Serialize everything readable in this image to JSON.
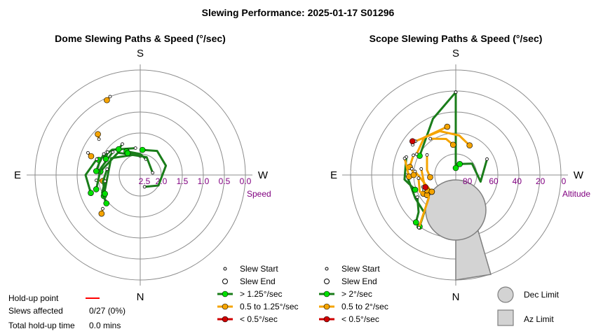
{
  "title": "Slewing Performance: 2025-01-17 S01296",
  "colors": {
    "fast": "#00e000",
    "fast_line": "#1a7d1a",
    "medium": "#f5a400",
    "slow": "#d00000",
    "ring": "#8c8c8c",
    "label": "#800080",
    "limit_fill": "#d3d3d3",
    "limit_stroke": "#7f7f7f",
    "holdup": "#ff0000"
  },
  "stats": {
    "holdup_label": "Hold-up point",
    "slews_affected_label": "Slews affected",
    "slews_affected_value": "0/27 (0%)",
    "total_holdup_label": "Total hold-up time",
    "total_holdup_value": "0.0 mins"
  },
  "legend_limits": {
    "dec_limit": "Dec Limit",
    "az_limit": "Az Limit"
  },
  "chart_data": [
    {
      "type": "scatter",
      "title": "Dome Slewing Paths & Speed (°/sec)",
      "projection": "polar",
      "directions": {
        "top": "S",
        "bottom": "N",
        "left": "E",
        "right": "W"
      },
      "radial_label": "Speed",
      "radial_ticks": [
        "2.5",
        "2.0",
        "1.5",
        "1.0",
        "0.5",
        "0.0"
      ],
      "rlim": [
        0,
        2.5
      ],
      "legend": [
        "Slew Start",
        "Slew End",
        "> 1.25°/sec",
        "0.5 to 1.25°/sec",
        "< 0.5°/sec"
      ],
      "speed_classes": [
        "> 1.25°/sec",
        "0.5 to 1.25°/sec",
        "< 0.5°/sec"
      ],
      "slews": [
        {
          "speed_class": 1,
          "az": [
            159,
            156
          ],
          "r": [
            0.5,
            0.55
          ]
        },
        {
          "speed_class": 1,
          "az": [
            131,
            134
          ],
          "r": [
            1.2,
            1.1
          ]
        },
        {
          "speed_class": 1,
          "az": [
            113,
            111
          ],
          "r": [
            1.15,
            1.25
          ]
        },
        {
          "speed_class": 1,
          "az": [
            83,
            81
          ],
          "r": [
            1.45,
            1.6
          ]
        },
        {
          "speed_class": 1,
          "az": [
            48,
            45
          ],
          "r": [
            1.3,
            1.2
          ]
        },
        {
          "speed_class": 0,
          "az": [
            180,
            135,
            95
          ],
          "r": [
            2.05,
            1.75,
            1.55
          ]
        },
        {
          "speed_class": 0,
          "az": [
            170,
            132,
            110
          ],
          "r": [
            1.85,
            1.6,
            1.45
          ]
        },
        {
          "speed_class": 0,
          "az": [
            120,
            105,
            95
          ],
          "r": [
            1.5,
            1.48,
            1.45
          ]
        },
        {
          "speed_class": 0,
          "az": [
            110,
            90,
            70
          ],
          "r": [
            1.4,
            1.2,
            1.25
          ]
        },
        {
          "speed_class": 0,
          "az": [
            130,
            100,
            72
          ],
          "r": [
            1.65,
            1.55,
            1.4
          ]
        },
        {
          "speed_class": 0,
          "az": [
            170,
            120,
            60
          ],
          "r": [
            2.0,
            1.7,
            1.5
          ]
        },
        {
          "speed_class": 0,
          "az": [
            200,
            180,
            150
          ],
          "r": [
            2.1,
            2.0,
            1.85
          ]
        },
        {
          "speed_class": 0,
          "az": [
            260,
            200,
            150
          ],
          "r": [
            2.2,
            2.05,
            1.9
          ]
        },
        {
          "speed_class": 0,
          "az": [
            80,
            65,
            50
          ],
          "r": [
            1.65,
            1.5,
            1.45
          ]
        },
        {
          "speed_class": 0,
          "az": [
            100,
            80,
            62
          ],
          "r": [
            1.7,
            1.6,
            1.55
          ]
        },
        {
          "speed_class": 0,
          "az": [
            340,
            300,
            250,
            215,
            185
          ],
          "r": [
            2.2,
            2.0,
            1.85,
            1.8,
            1.9
          ]
        },
        {
          "speed_class": 0,
          "az": [
            125,
            115
          ],
          "r": [
            1.55,
            1.6
          ]
        },
        {
          "speed_class": 0,
          "az": [
            150,
            140
          ],
          "r": [
            1.65,
            1.7
          ]
        }
      ]
    },
    {
      "type": "scatter",
      "title": "Scope Slewing Paths & Speed (°/sec)",
      "projection": "polar",
      "directions": {
        "top": "S",
        "bottom": "N",
        "left": "E",
        "right": "W"
      },
      "radial_label": "Altitude",
      "radial_ticks": [
        "80",
        "60",
        "40",
        "20",
        "0"
      ],
      "rlim": [
        90,
        0
      ],
      "legend": [
        "Slew Start",
        "Slew End",
        "> 2°/sec",
        "0.5 to 2°/sec",
        "< 0.5°/sec"
      ],
      "speed_classes": [
        "> 2°/sec",
        "0.5 to 2°/sec",
        "< 0.5°/sec"
      ],
      "slews": [
        {
          "speed_class": 0,
          "az": [
            180,
            180
          ],
          "alt": [
            19,
            84
          ]
        },
        {
          "speed_class": 0,
          "az": [
            180,
            158,
            118
          ],
          "alt": [
            19,
            38,
            55
          ]
        },
        {
          "speed_class": 0,
          "az": [
            243,
            285,
            235,
            200
          ],
          "alt": [
            60,
            68,
            73,
            80
          ]
        },
        {
          "speed_class": 0,
          "az": [
            90,
            60,
            40,
            35
          ],
          "alt": [
            48,
            50,
            48,
            36
          ]
        },
        {
          "speed_class": 0,
          "az": [
            60,
            45,
            40
          ],
          "alt": [
            52,
            45,
            37
          ]
        },
        {
          "speed_class": 0,
          "az": [
            110,
            85,
            70
          ],
          "alt": [
            45,
            46,
            53
          ]
        },
        {
          "speed_class": 1,
          "az": [
            145,
            165,
            175
          ],
          "alt": [
            52,
            58,
            64
          ]
        },
        {
          "speed_class": 1,
          "az": [
            130,
            160,
            185,
            205
          ],
          "alt": [
            45,
            50,
            56,
            62
          ]
        },
        {
          "speed_class": 1,
          "az": [
            118,
            140,
            170
          ],
          "alt": [
            52,
            48,
            48
          ]
        },
        {
          "speed_class": 1,
          "az": [
            125,
            100,
            85
          ],
          "alt": [
            60,
            65,
            68
          ]
        },
        {
          "speed_class": 1,
          "az": [
            100,
            75,
            60
          ],
          "alt": [
            60,
            62,
            58
          ]
        },
        {
          "speed_class": 1,
          "az": [
            95,
            72,
            55
          ],
          "alt": [
            55,
            63,
            65
          ]
        },
        {
          "speed_class": 1,
          "az": [
            85,
            65,
            55
          ],
          "alt": [
            58,
            56,
            60
          ]
        },
        {
          "speed_class": 1,
          "az": [
            35,
            50,
            62
          ],
          "alt": [
            35,
            60,
            62
          ]
        },
        {
          "speed_class": 1,
          "az": [
            115,
            100
          ],
          "alt": [
            50,
            50
          ]
        },
        {
          "speed_class": 1,
          "az": [
            65,
            55
          ],
          "alt": [
            60,
            65
          ]
        },
        {
          "speed_class": 1,
          "az": [
            108,
            88
          ],
          "alt": [
            44,
            50
          ]
        },
        {
          "speed_class": 1,
          "az": [
            98,
            90
          ],
          "alt": [
            52,
            54
          ]
        },
        {
          "speed_class": 2,
          "az": [
            125,
            128
          ],
          "alt": [
            45,
            43
          ]
        },
        {
          "speed_class": 2,
          "az": [
            70,
            68
          ],
          "alt": [
            60,
            62
          ]
        }
      ]
    }
  ]
}
